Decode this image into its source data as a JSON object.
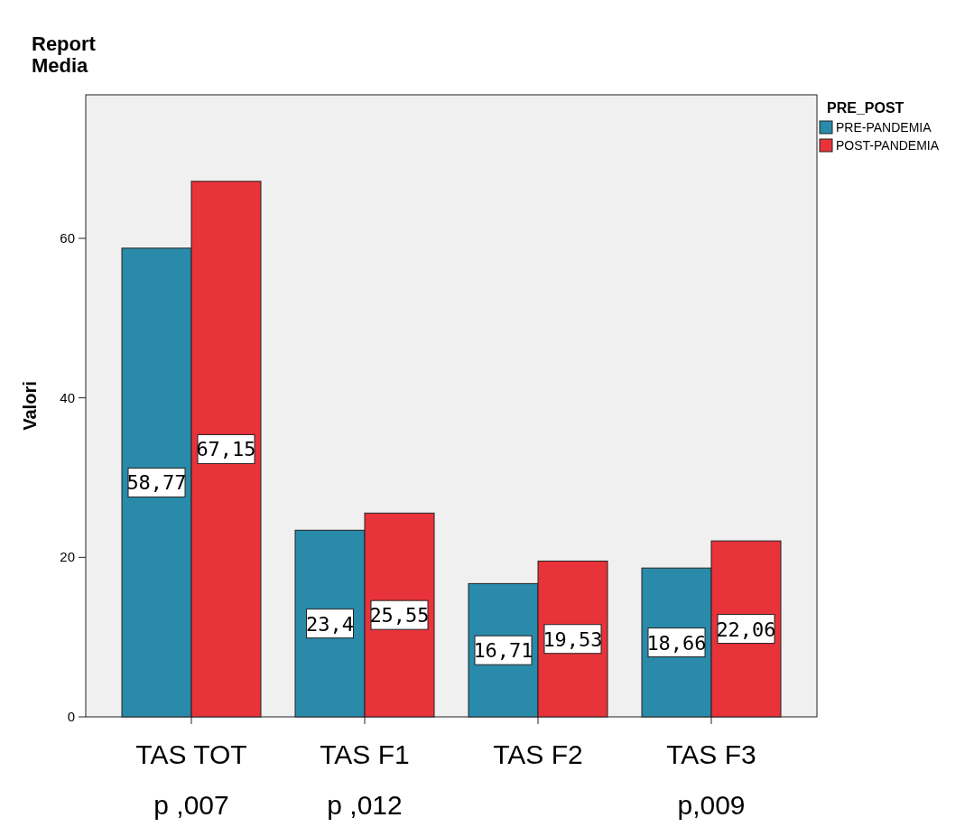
{
  "chart_data": {
    "type": "bar",
    "title": "Report\nMedia",
    "ylabel": "Valori",
    "legend_title": "PRE_POST",
    "legend": "top right",
    "grid": false,
    "categories": [
      "TAS TOT",
      "TAS F1",
      "TAS F2",
      "TAS F3"
    ],
    "series": [
      {
        "name": "PRE-PANDEMIA",
        "color": "#2a8aaa",
        "values": [
          58.77,
          23.4,
          16.71,
          18.66
        ],
        "value_labels": [
          "58,77",
          "23,4",
          "16,71",
          "18,66"
        ]
      },
      {
        "name": "POST-PANDEMIA",
        "color": "#e8333a",
        "values": [
          67.15,
          25.55,
          19.53,
          22.06
        ],
        "value_labels": [
          "67,15",
          "25,55",
          "19,53",
          "22,06"
        ]
      }
    ],
    "ylim": [
      0,
      78
    ],
    "yticks": [
      0,
      20,
      40,
      60
    ],
    "annotations": [
      "p ,007",
      "p ,012",
      "p,009"
    ]
  }
}
